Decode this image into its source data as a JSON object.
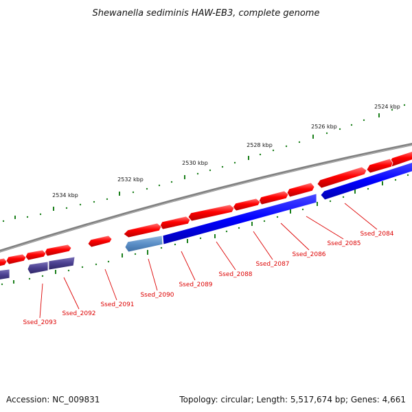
{
  "title": "Shewanella sediminis HAW-EB3, complete genome",
  "footer": {
    "accession": "Accession: NC_009831",
    "summary": "Topology: circular; Length: 5,517,674 bp; Genes: 4,661"
  },
  "scale_labels": [
    "2524 kbp",
    "2526 kbp",
    "2528 kbp",
    "2530 kbp",
    "2532 kbp",
    "2534 kbp"
  ],
  "gene_labels": [
    "Ssed_2084",
    "Ssed_2085",
    "Ssed_2086",
    "Ssed_2087",
    "Ssed_2088",
    "Ssed_2089",
    "Ssed_2090",
    "Ssed_2091",
    "Ssed_2092",
    "Ssed_2093"
  ],
  "colors": {
    "forward": "#ff0000",
    "reverse": "#0000ff",
    "reverse_light": "#5b8fc7",
    "reverse_dark": "#4a3f8f",
    "backbone": "#808080",
    "ticks": "#1a7f1a",
    "label": "#dd0000"
  }
}
